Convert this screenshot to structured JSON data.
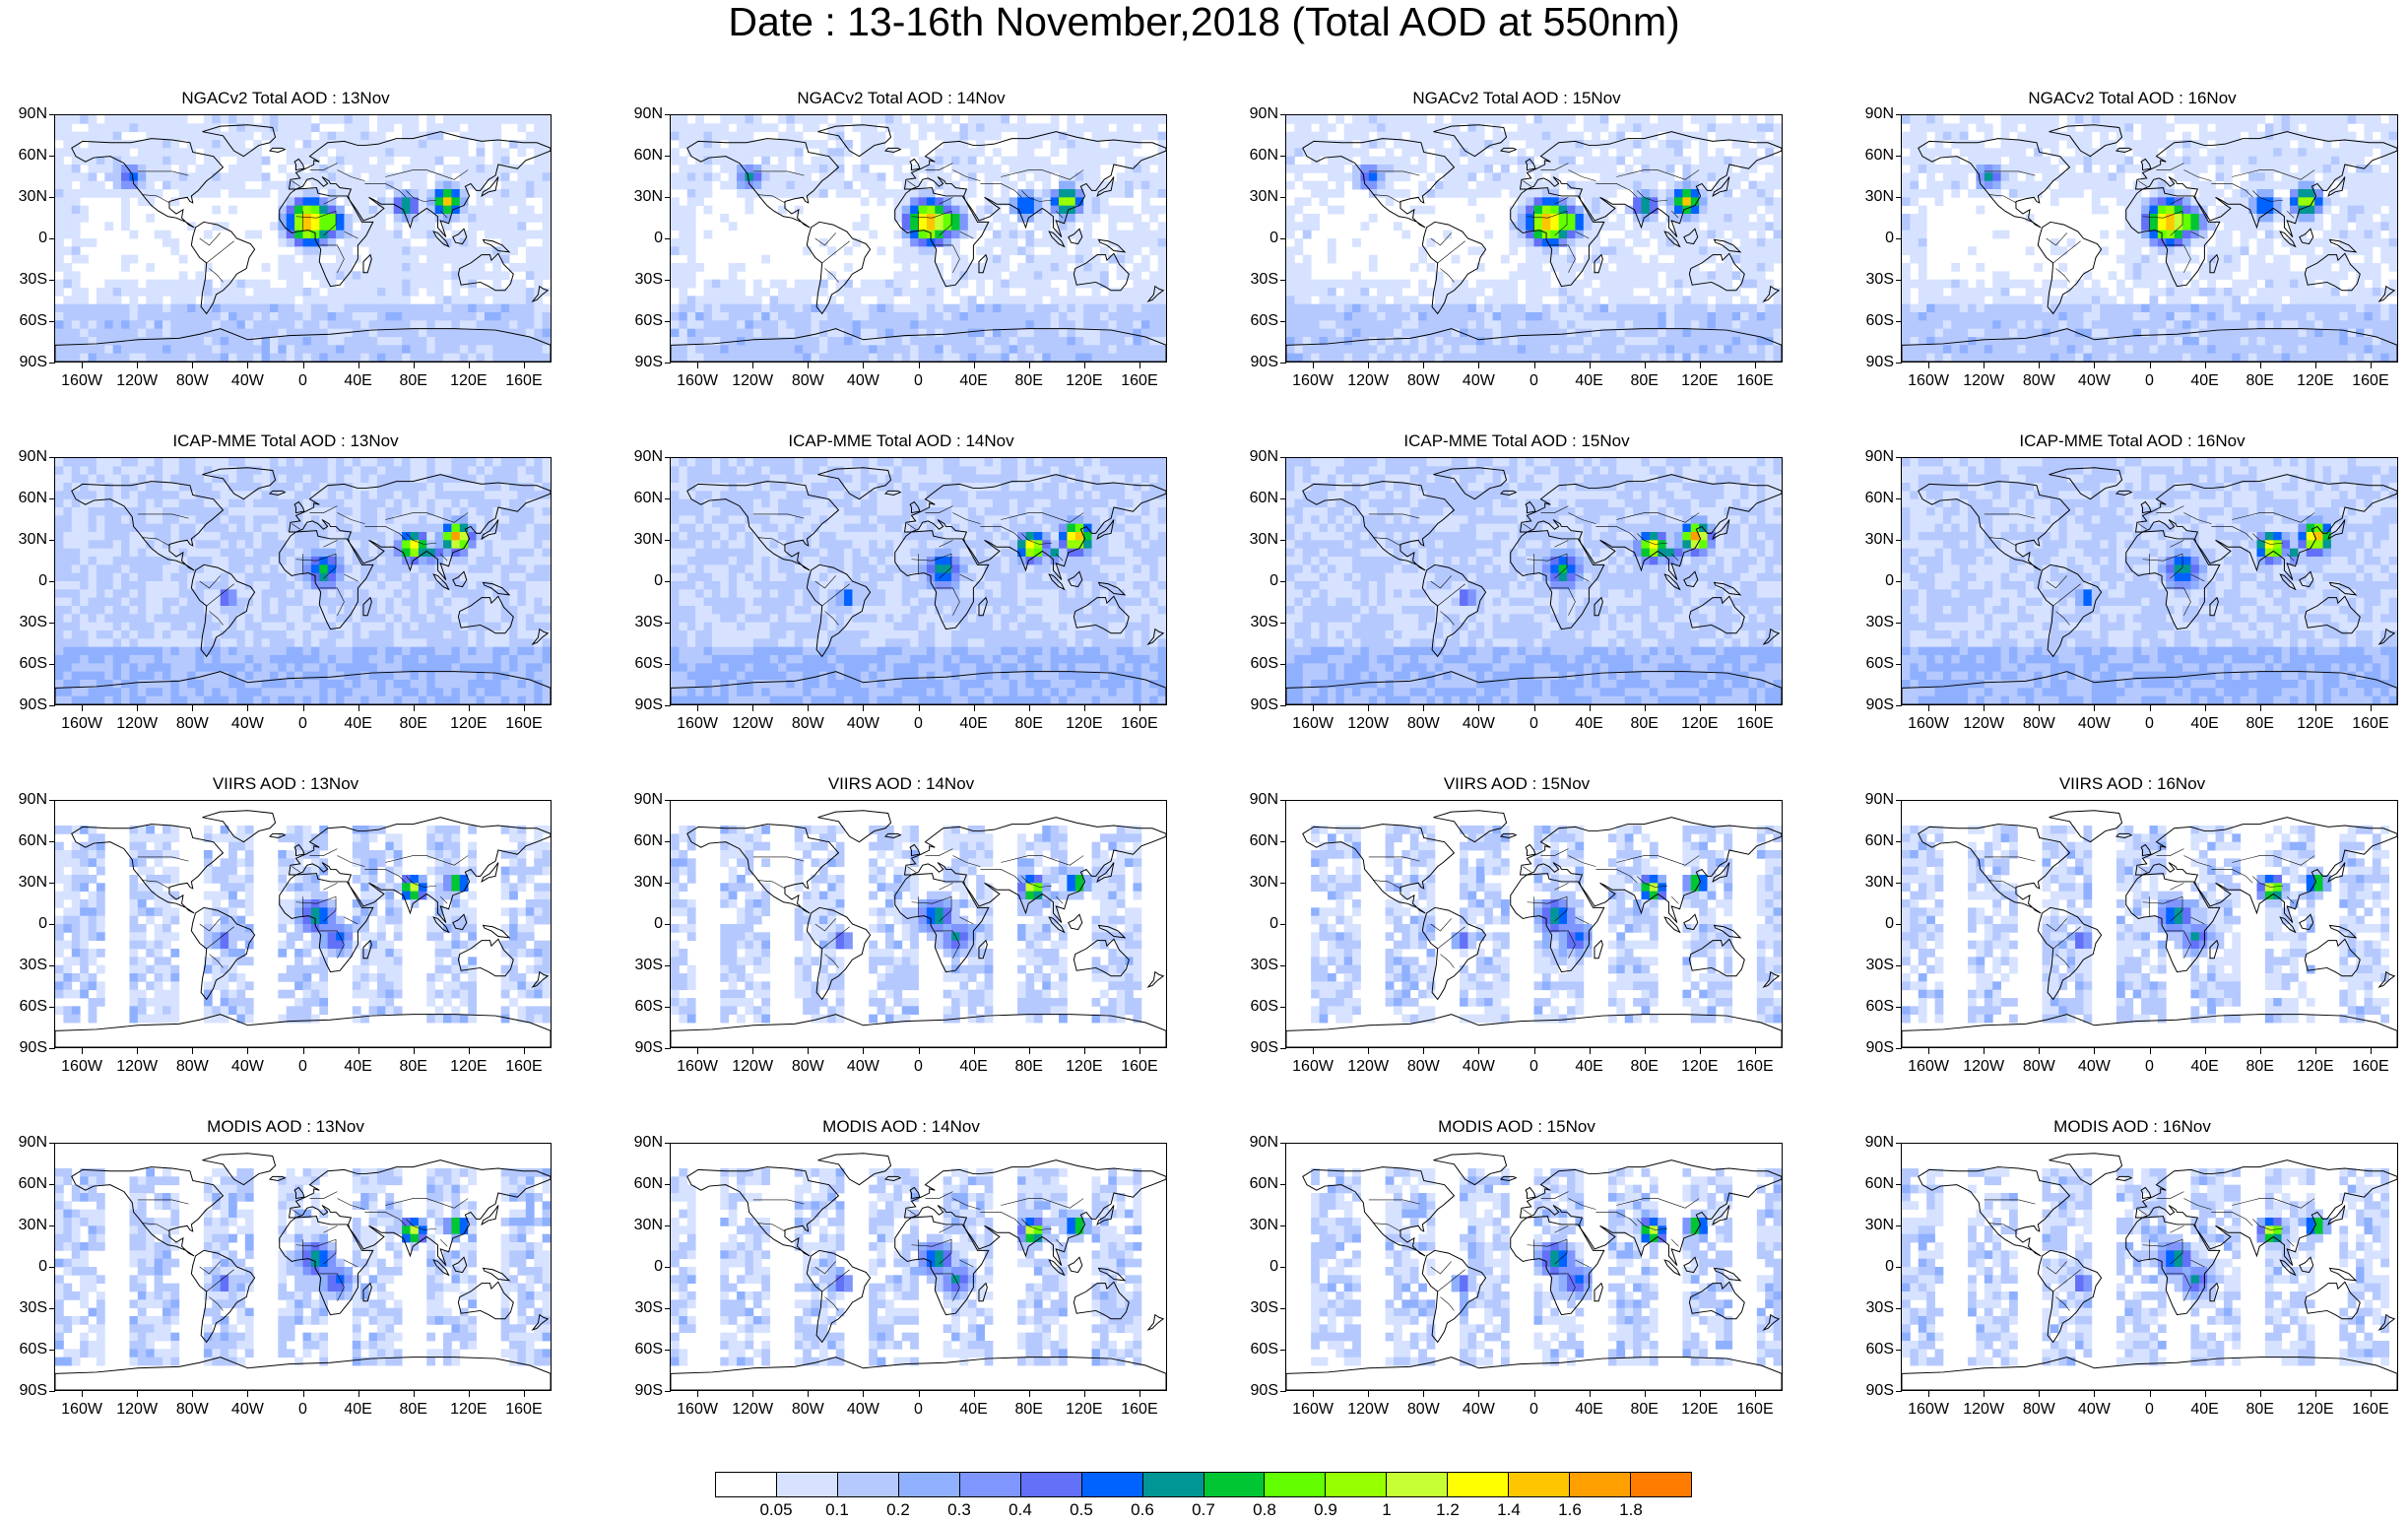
{
  "title": "Date : 13-16th November,2018 (Total AOD at 550nm)",
  "rows": [
    {
      "product": "NGACv2 Total AOD",
      "style": "model",
      "panels": [
        "NGACv2 Total AOD : 13Nov",
        "NGACv2 Total AOD : 14Nov",
        "NGACv2 Total AOD : 15Nov",
        "NGACv2 Total AOD : 16Nov"
      ]
    },
    {
      "product": "ICAP-MME Total AOD",
      "style": "model-high",
      "panels": [
        "ICAP-MME Total AOD : 13Nov",
        "ICAP-MME Total AOD : 14Nov",
        "ICAP-MME Total AOD : 15Nov",
        "ICAP-MME Total AOD : 16Nov"
      ]
    },
    {
      "product": "VIIRS AOD",
      "style": "satellite",
      "panels": [
        "VIIRS AOD : 13Nov",
        "VIIRS AOD : 14Nov",
        "VIIRS AOD : 15Nov",
        "VIIRS AOD : 16Nov"
      ]
    },
    {
      "product": "MODIS AOD",
      "style": "satellite",
      "panels": [
        "MODIS AOD : 13Nov",
        "MODIS AOD : 14Nov",
        "MODIS AOD : 15Nov",
        "MODIS AOD : 16Nov"
      ]
    }
  ],
  "lat_labels": [
    "90N",
    "60N",
    "30N",
    "0",
    "30S",
    "60S",
    "90S"
  ],
  "lon_labels": [
    "160W",
    "120W",
    "80W",
    "40W",
    "0",
    "40E",
    "80E",
    "120E",
    "160E"
  ],
  "lon_values": [
    -160,
    -120,
    -80,
    -40,
    0,
    40,
    80,
    120,
    160
  ],
  "colorbar": {
    "levels": [
      "0.05",
      "0.1",
      "0.2",
      "0.3",
      "0.4",
      "0.5",
      "0.6",
      "0.7",
      "0.8",
      "0.9",
      "1",
      "1.2",
      "1.4",
      "1.6",
      "1.8"
    ],
    "colors": [
      "#ffffff",
      "#d6e2ff",
      "#b5c9ff",
      "#8fb0ff",
      "#7f96ff",
      "#6370f8",
      "#0063ff",
      "#009696",
      "#00c633",
      "#63ff00",
      "#96ff00",
      "#c6ff33",
      "#ffff00",
      "#ffc600",
      "#ffa000",
      "#ff7c00",
      "#ff1900"
    ]
  }
}
